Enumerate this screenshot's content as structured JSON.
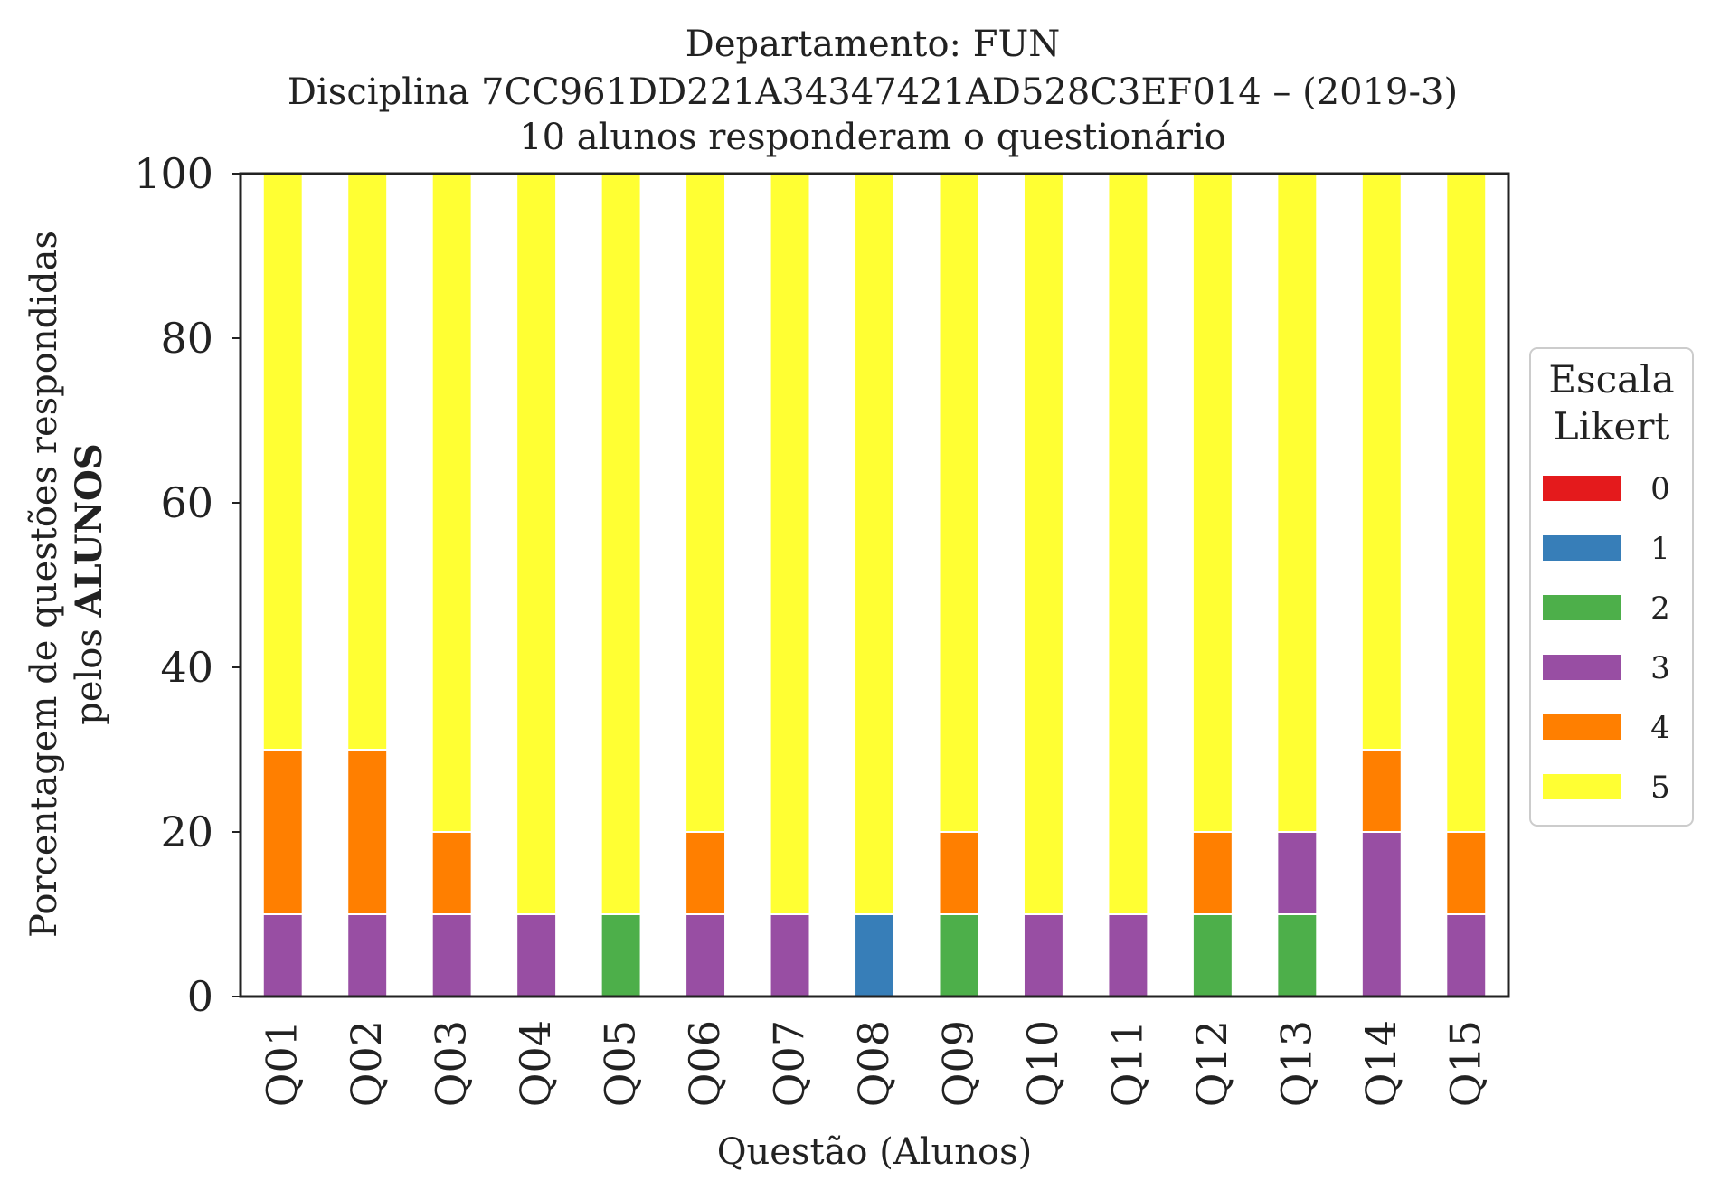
{
  "chart_data": {
    "type": "bar",
    "stacked": true,
    "title_lines": [
      "Departamento: FUN",
      "Disciplina 7CC961DD221A34347421AD528C3EF014 – (2019-3)",
      "10 alunos responderam o questionário"
    ],
    "xlabel": "Questão (Alunos)",
    "ylabel_line1": "Porcentagem de questões respondidas",
    "ylabel_line2_prefix": "pelos ",
    "ylabel_line2_bold": "ALUNOS",
    "ylim": [
      0,
      100
    ],
    "yticks": [
      "0",
      "20",
      "40",
      "60",
      "80",
      "100"
    ],
    "categories": [
      "Q01",
      "Q02",
      "Q03",
      "Q04",
      "Q05",
      "Q06",
      "Q07",
      "Q08",
      "Q09",
      "Q10",
      "Q11",
      "Q12",
      "Q13",
      "Q14",
      "Q15"
    ],
    "legend": {
      "title_lines": [
        "Escala",
        "Likert"
      ],
      "placement": "center-right outside"
    },
    "series": [
      {
        "name": "0",
        "color": "#e41a1c",
        "values": [
          0,
          0,
          0,
          0,
          0,
          0,
          0,
          0,
          0,
          0,
          0,
          0,
          0,
          0,
          0
        ]
      },
      {
        "name": "1",
        "color": "#377eb8",
        "values": [
          0,
          0,
          0,
          0,
          0,
          0,
          0,
          10,
          0,
          0,
          0,
          0,
          0,
          0,
          0
        ]
      },
      {
        "name": "2",
        "color": "#4daf4a",
        "values": [
          0,
          0,
          0,
          0,
          10,
          0,
          0,
          0,
          10,
          0,
          0,
          10,
          10,
          0,
          0
        ]
      },
      {
        "name": "3",
        "color": "#984ea3",
        "values": [
          10,
          10,
          10,
          10,
          0,
          10,
          10,
          0,
          0,
          10,
          10,
          0,
          10,
          20,
          10
        ]
      },
      {
        "name": "4",
        "color": "#ff7f00",
        "values": [
          20,
          20,
          10,
          0,
          0,
          10,
          0,
          0,
          10,
          0,
          0,
          10,
          0,
          10,
          10
        ]
      },
      {
        "name": "5",
        "color": "#ffff33",
        "values": [
          70,
          70,
          80,
          90,
          90,
          80,
          90,
          90,
          80,
          90,
          90,
          80,
          80,
          70,
          80
        ]
      }
    ],
    "grid": false
  }
}
